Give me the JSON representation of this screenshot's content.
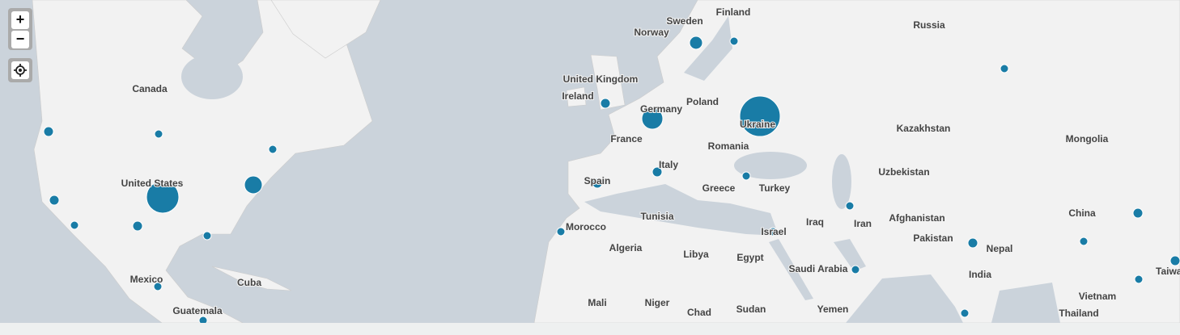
{
  "controls": {
    "zoom_in": "+",
    "zoom_out": "−"
  },
  "labels": [
    "Finland",
    "Sweden",
    "Russia",
    "Norway",
    "Canada",
    "United Kingdom",
    "Ireland",
    "Germany",
    "Poland",
    "Ukraine",
    "France",
    "Romania",
    "Kazakhstan",
    "Mongolia",
    "Italy",
    "Uzbekistan",
    "United States",
    "Spain",
    "Greece",
    "Turkey",
    "Tunisia",
    "Iraq",
    "Iran",
    "Afghanistan",
    "China",
    "Morocco",
    "Pakistan",
    "Israel",
    "Algeria",
    "Libya",
    "Egypt",
    "Saudi Arabia",
    "Nepal",
    "India",
    "Mexico",
    "Cuba",
    "Mali",
    "Niger",
    "Chad",
    "Sudan",
    "Yemen",
    "Vietnam",
    "Guatemala",
    "Thailand",
    "Taiwan"
  ]
}
